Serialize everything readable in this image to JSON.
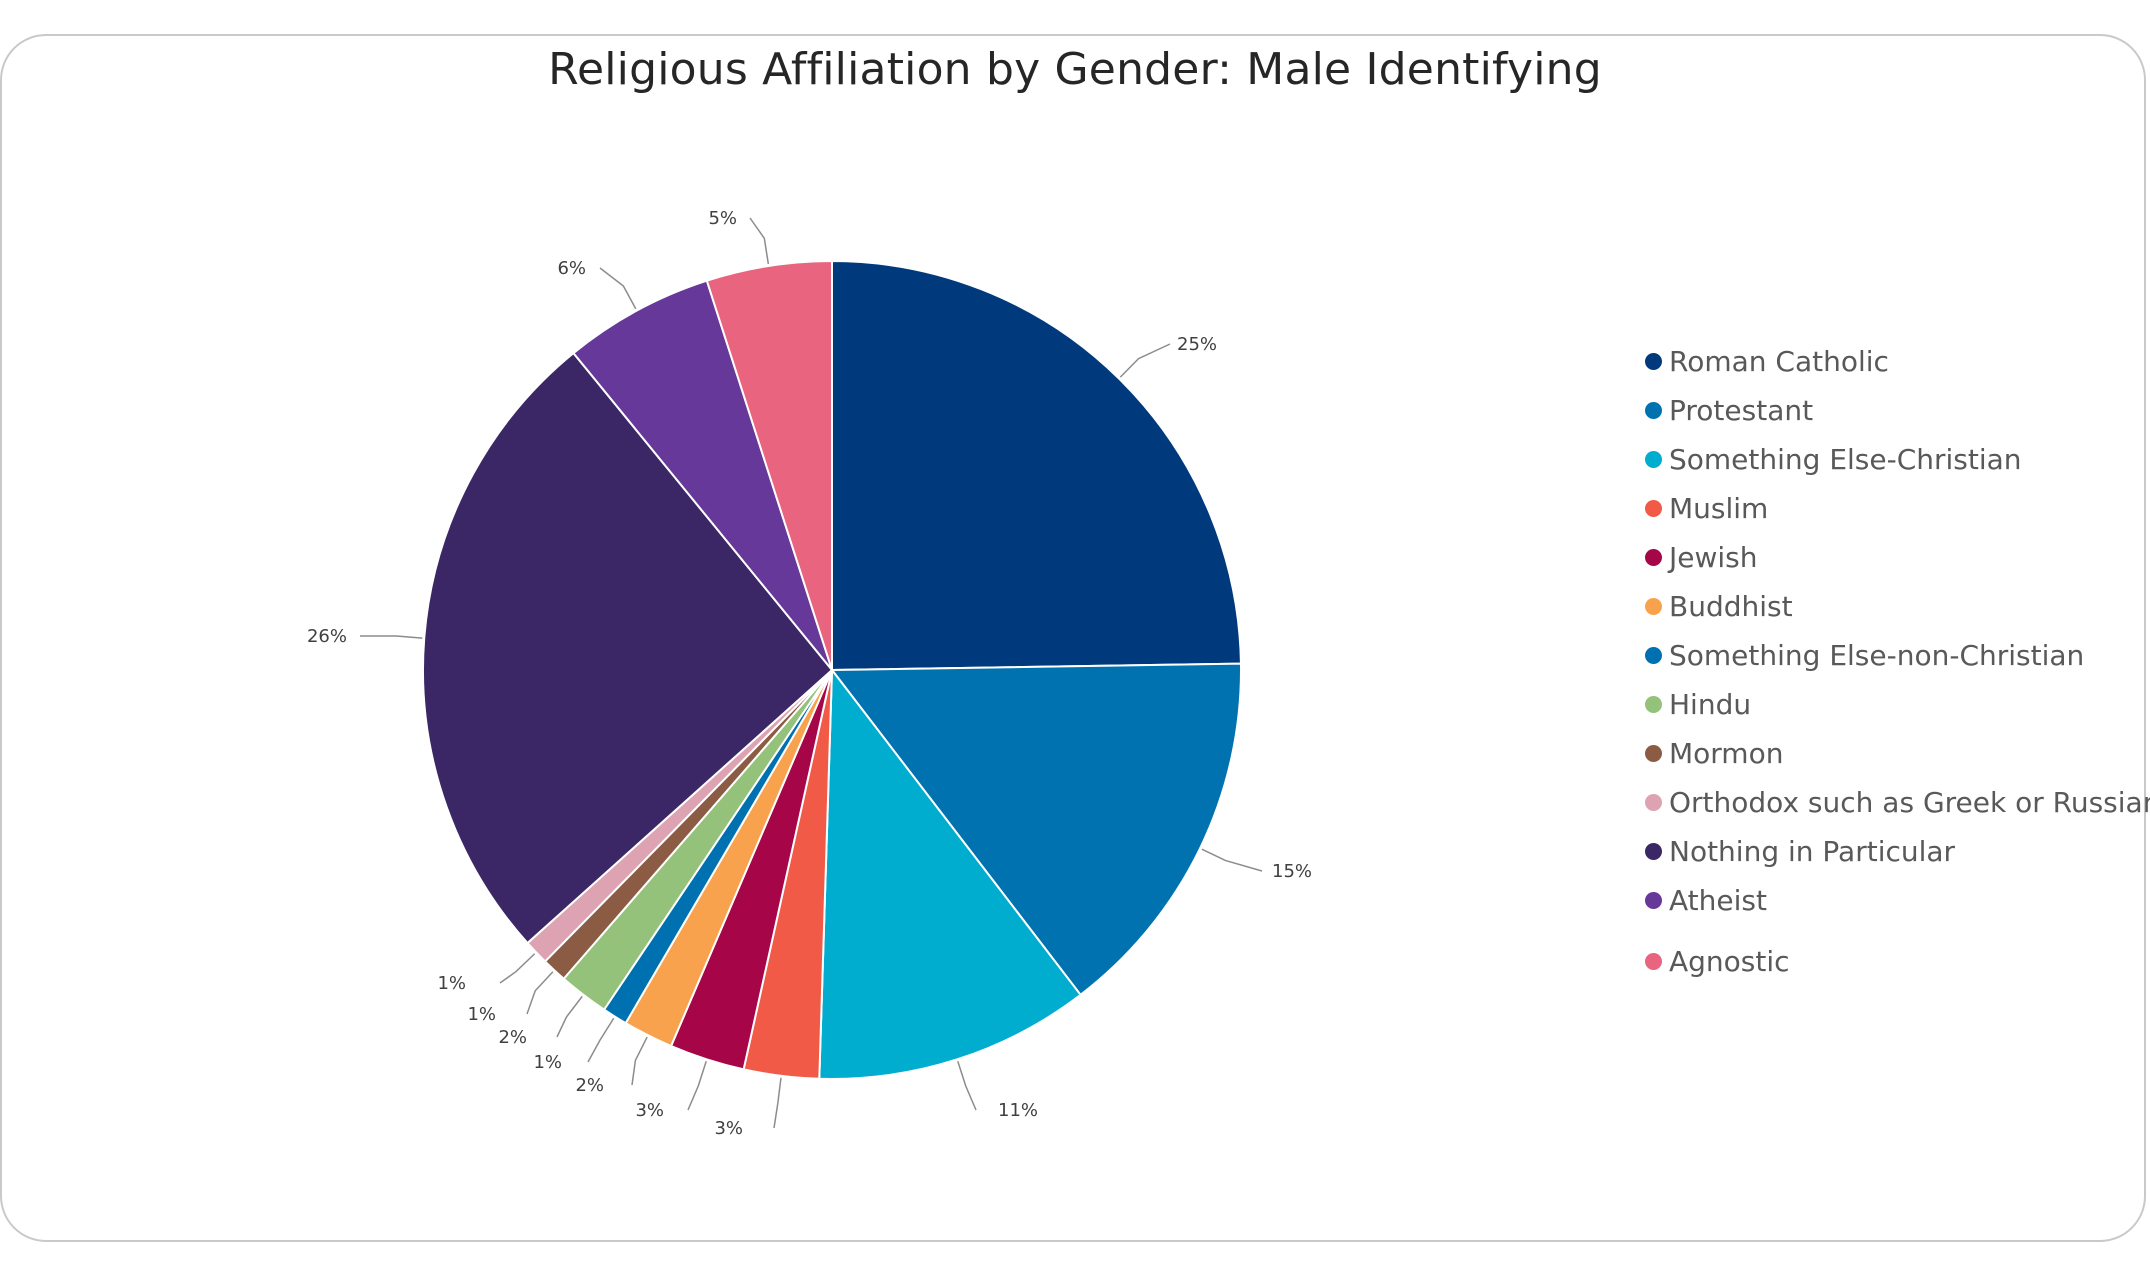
{
  "chart_data": {
    "type": "pie",
    "title": "Religious Affiliation by Gender: Male Identifying",
    "legend_position": "right",
    "slices": [
      {
        "name": "Roman Catholic",
        "value": 25,
        "label": "25%",
        "color": "#003A7C"
      },
      {
        "name": "Protestant",
        "value": 15,
        "label": "15%",
        "color": "#0072B0"
      },
      {
        "name": "Something Else-Christian",
        "value": 11,
        "label": "11%",
        "color": "#00ADCF"
      },
      {
        "name": "Muslim",
        "value": 3,
        "label": "3%",
        "color": "#F05A47"
      },
      {
        "name": "Jewish",
        "value": 3,
        "label": "3%",
        "color": "#A60648"
      },
      {
        "name": "Buddhist",
        "value": 2,
        "label": "2%",
        "color": "#F9A24D"
      },
      {
        "name": "Something Else-non-Christian",
        "value": 1,
        "label": "1%",
        "color": "#0071B0"
      },
      {
        "name": "Hindu",
        "value": 2,
        "label": "2%",
        "color": "#94C27A"
      },
      {
        "name": "Mormon",
        "value": 1,
        "label": "1%",
        "color": "#8B5B43"
      },
      {
        "name": "Orthodox such as Greek or Russian",
        "value": 1,
        "label": "1%",
        "color": "#DDA3B2"
      },
      {
        "name": "Nothing in Particular",
        "value": 26,
        "label": "26%",
        "color": "#3B2765"
      },
      {
        "name": "Atheist",
        "value": 6,
        "label": "6%",
        "color": "#65389A"
      },
      {
        "name": "Agnostic",
        "value": 5,
        "label": "5%",
        "color": "#E8647F"
      }
    ]
  }
}
